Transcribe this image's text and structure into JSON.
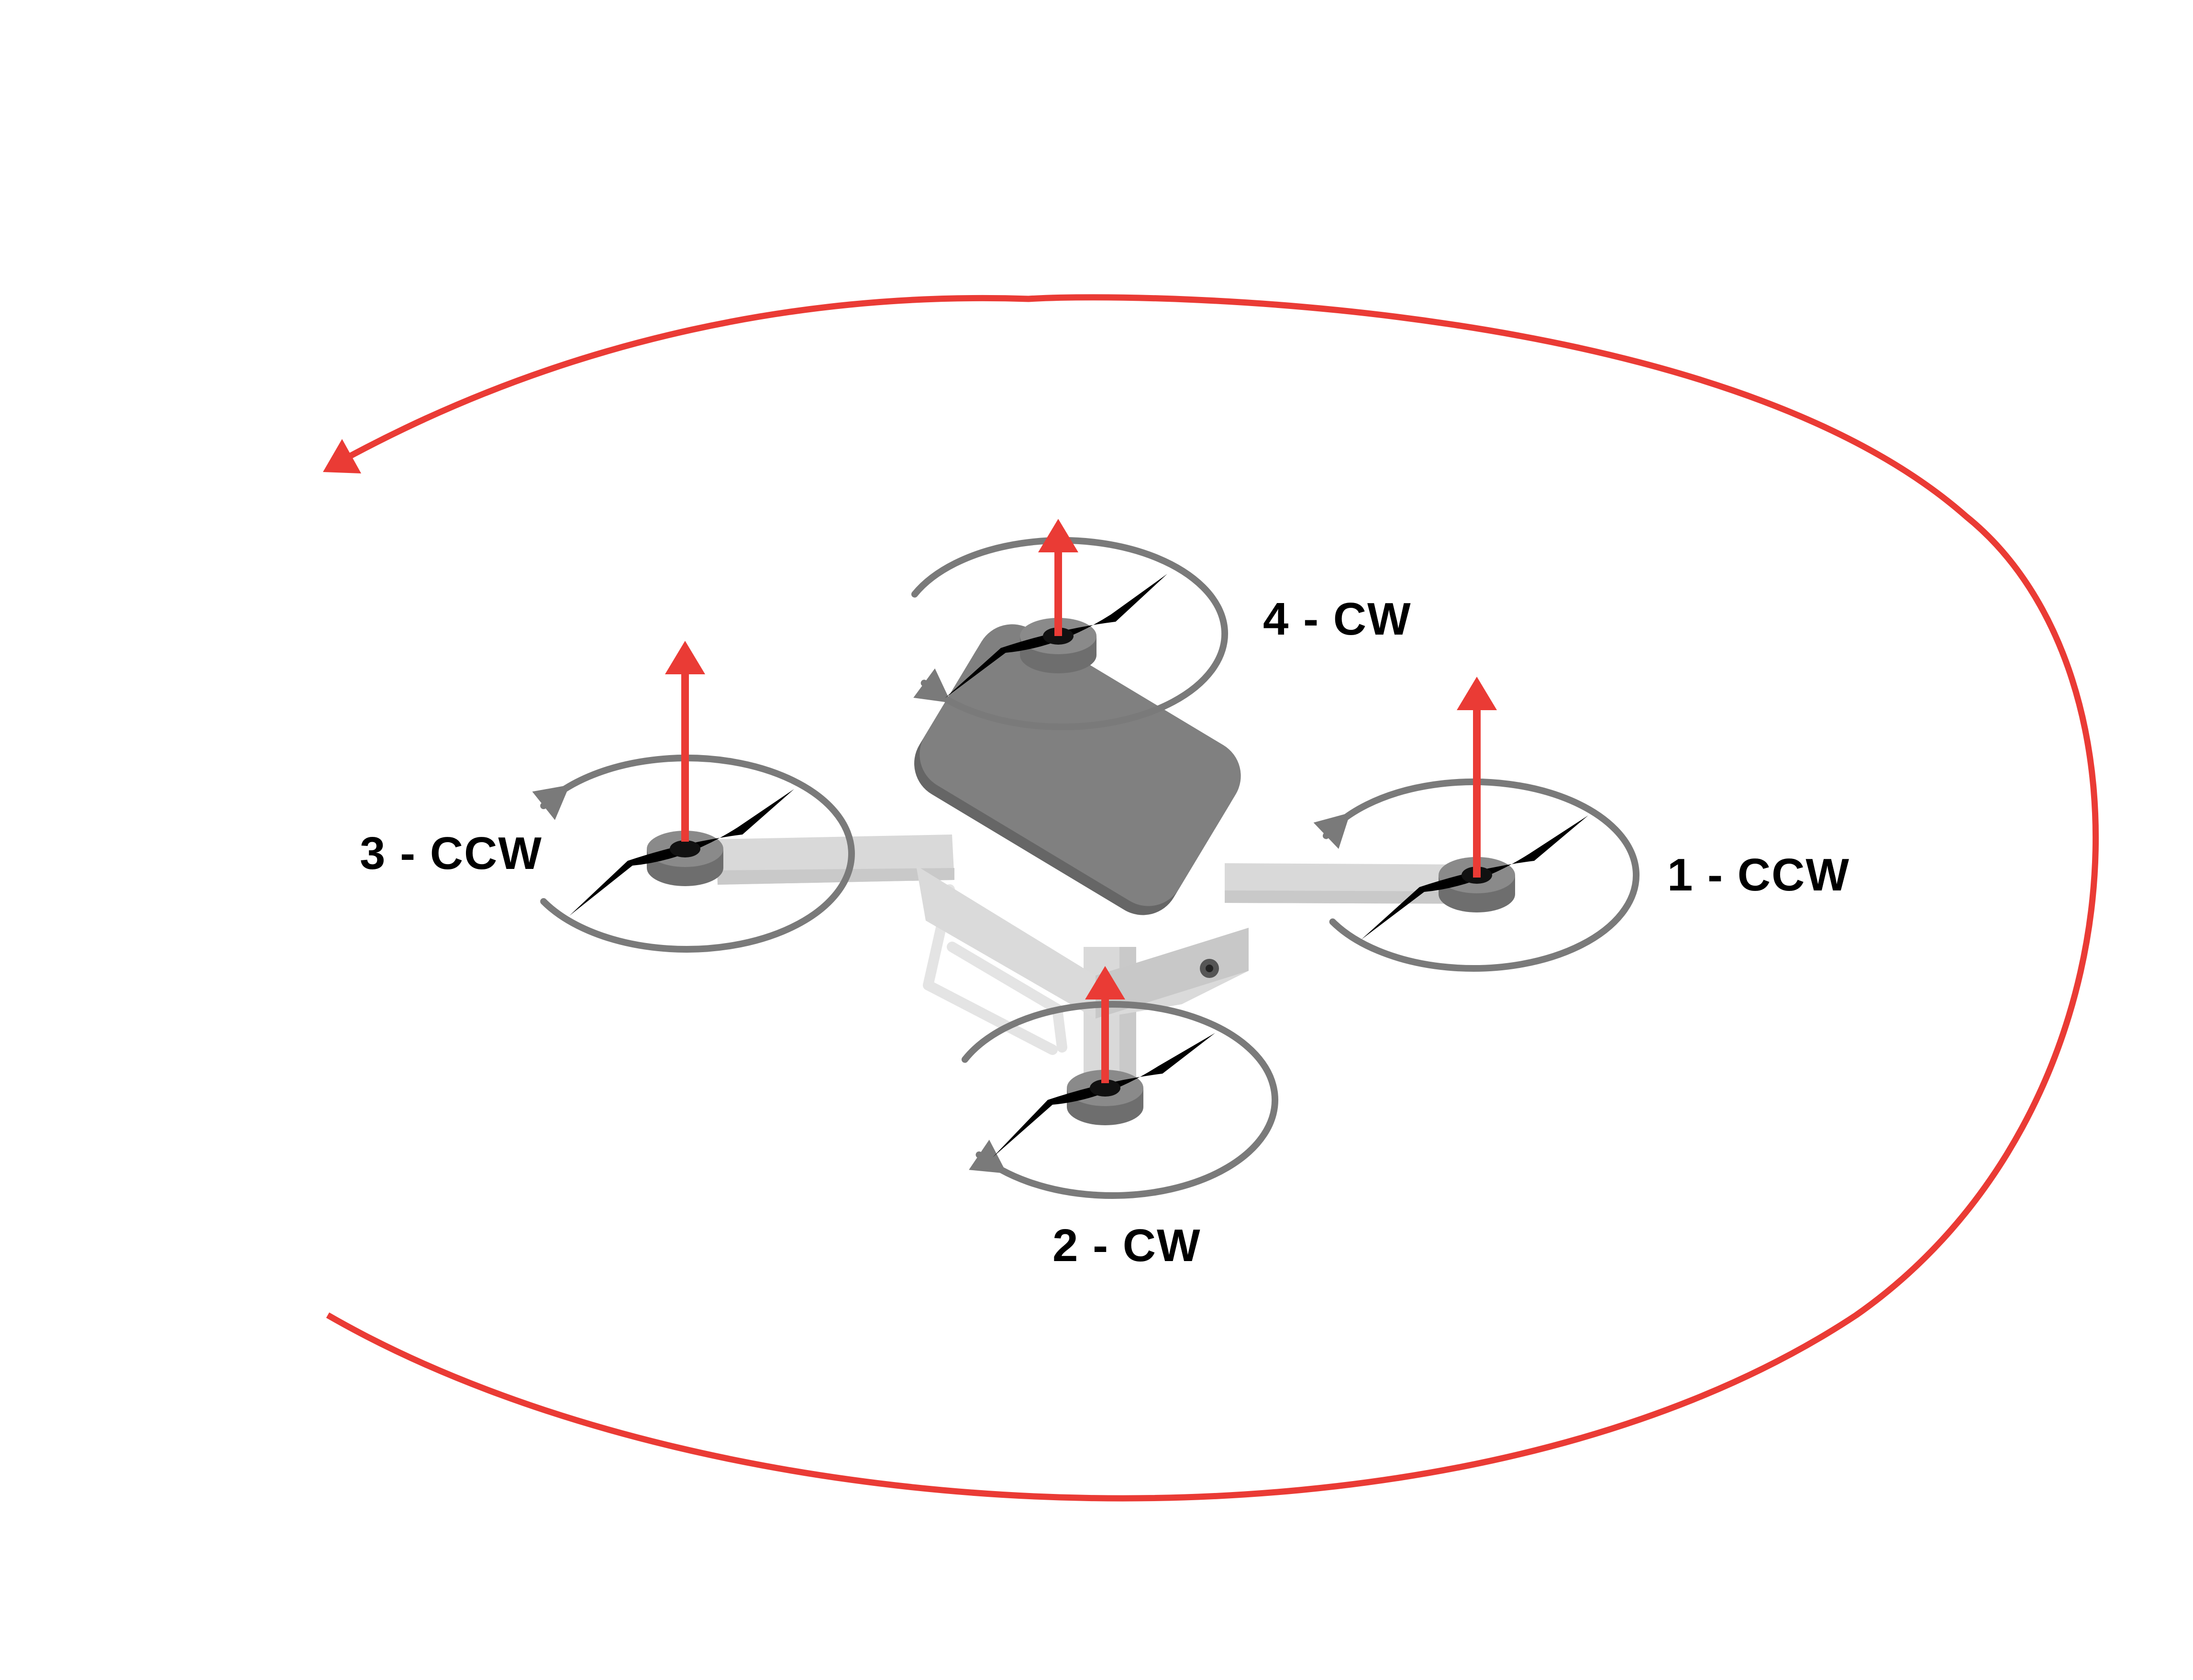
{
  "colors": {
    "thrust_arrow": "#ea3b35",
    "yaw_arc": "#ea3b35",
    "rotation_arc": "#7a7a7a",
    "propeller": "#000000",
    "body_top": "#808080",
    "body_edge": "#666666",
    "arm": "#d9d9d9",
    "motor": "#6e6e6e"
  },
  "motors": [
    {
      "id": "1",
      "label": "1 - CCW",
      "direction": "CCW"
    },
    {
      "id": "2",
      "label": "2 - CW",
      "direction": "CW"
    },
    {
      "id": "3",
      "label": "3 - CCW",
      "direction": "CCW"
    },
    {
      "id": "4",
      "label": "4 - CW",
      "direction": "CW"
    }
  ],
  "yaw_rotation": {
    "direction": "CCW",
    "icon": "curved-arrow-icon"
  },
  "icons": {
    "thrust": "up-arrow-icon",
    "spin": "rotation-arrow-icon",
    "drone": "quadcopter-icon"
  }
}
